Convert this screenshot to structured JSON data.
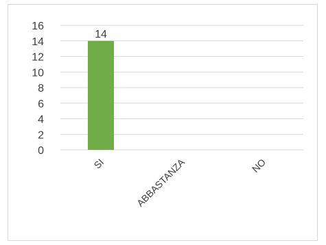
{
  "chart_data": {
    "type": "bar",
    "categories": [
      "SI",
      "ABBASTANZA",
      "NO"
    ],
    "values": [
      14,
      null,
      null
    ],
    "data_labels": [
      "14",
      "",
      ""
    ],
    "ylim": [
      0,
      16
    ],
    "yticks": [
      0,
      2,
      4,
      6,
      8,
      10,
      12,
      14,
      16
    ],
    "grid": true,
    "legend": "none",
    "colors": {
      "bar": "#70ad47",
      "grid": "#d9d9d9",
      "text": "#404040"
    }
  }
}
